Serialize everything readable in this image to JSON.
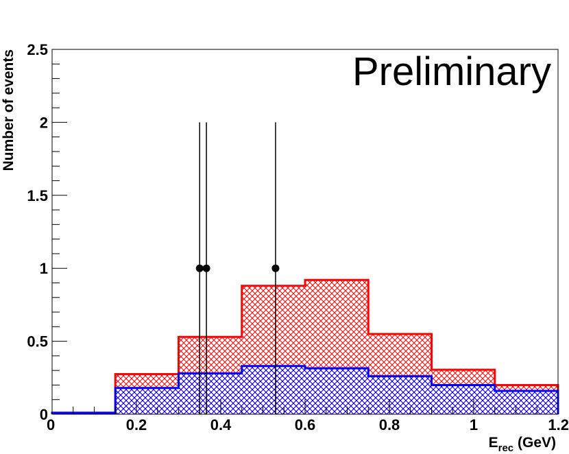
{
  "chart_data": {
    "type": "histogram",
    "title": "",
    "annotation": "Preliminary",
    "xlabel": {
      "main": "E",
      "sub": "rec",
      "unit": " (GeV)"
    },
    "ylabel": "Number of events",
    "xlim": [
      0,
      1.2
    ],
    "ylim": [
      0,
      2.5
    ],
    "x_ticks": [
      0,
      0.2,
      0.4,
      0.6,
      0.8,
      1,
      1.2
    ],
    "x_tick_labels": [
      "0",
      "0.2",
      "0.4",
      "0.6",
      "0.8",
      "1",
      "1.2"
    ],
    "y_ticks": [
      0,
      0.5,
      1,
      1.5,
      2,
      2.5
    ],
    "y_tick_labels": [
      "0",
      "0.5",
      "1",
      "1.5",
      "2",
      "2.5"
    ],
    "bin_edges": [
      0,
      0.15,
      0.3,
      0.45,
      0.6,
      0.75,
      0.9,
      1.05,
      1.2
    ],
    "series": [
      {
        "kind": "stacked-hist-total",
        "color": "#ff0000",
        "values": [
          0.01,
          0.275,
          0.53,
          0.88,
          0.92,
          0.55,
          0.305,
          0.2
        ]
      },
      {
        "kind": "hist",
        "color": "#0000ff",
        "values": [
          0.01,
          0.18,
          0.28,
          0.33,
          0.315,
          0.26,
          0.2,
          0.16
        ]
      }
    ],
    "data_points": [
      {
        "x": 0.35,
        "y": 1,
        "err_low": 1,
        "err_high": 1
      },
      {
        "x": 0.366,
        "y": 1,
        "err_low": 1,
        "err_high": 1
      },
      {
        "x": 0.53,
        "y": 1,
        "err_low": 1,
        "err_high": 1
      }
    ],
    "legend": "none",
    "grid": false
  }
}
